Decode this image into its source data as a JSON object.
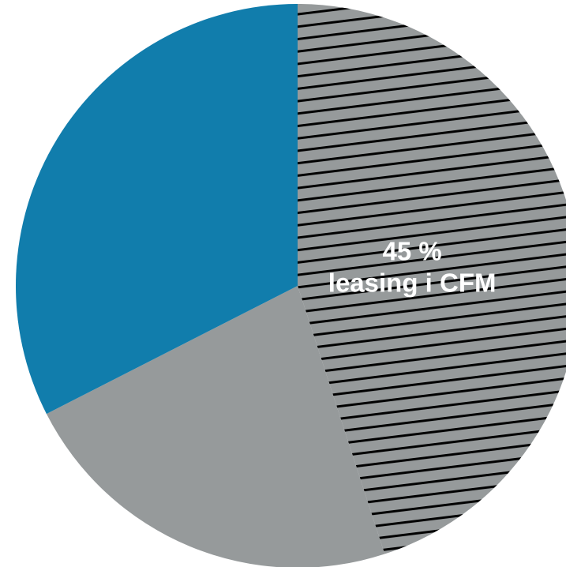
{
  "chart_data": {
    "type": "pie",
    "title": "",
    "start_angle_deg": 0,
    "direction": "clockwise",
    "slices": [
      {
        "value": 45,
        "label_lines": [
          "45 %",
          "leasing i CFM"
        ],
        "color": "#969a9b",
        "pattern": "horizontal-hatch",
        "pattern_color": "#000000"
      },
      {
        "value": 22.5,
        "label_lines": [],
        "color": "#969a9b",
        "pattern": "none"
      },
      {
        "value": 32.5,
        "label_lines": [],
        "color": "#117dac",
        "pattern": "none"
      }
    ],
    "legend": "none"
  }
}
